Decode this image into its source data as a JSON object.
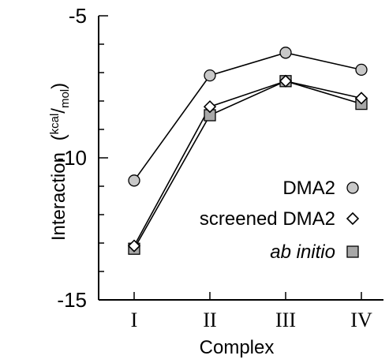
{
  "chart_data": {
    "type": "line",
    "categories": [
      "I",
      "II",
      "III",
      "IV"
    ],
    "series": [
      {
        "name": "DMA2",
        "marker": "circle",
        "values": [
          -10.8,
          -7.1,
          -6.3,
          -6.9
        ]
      },
      {
        "name": "screened DMA2",
        "marker": "diamond",
        "values": [
          -13.1,
          -8.2,
          -7.3,
          -7.9
        ]
      },
      {
        "name": "ab initio",
        "marker": "square",
        "values": [
          -13.2,
          -8.5,
          -7.3,
          -8.1
        ]
      }
    ],
    "xlabel": "Complex",
    "ylabel": "Interaction",
    "ylabel_unit_num": "kcal",
    "ylabel_unit_den": "mol",
    "ylim": [
      -15,
      -5
    ],
    "yticks": [
      -5,
      -10,
      -15
    ],
    "ytick_labels": [
      "-5",
      "-10",
      "-15"
    ],
    "grid": false,
    "legend_position": "right-center",
    "colors": {
      "line": "#000000",
      "circle_fill": "#c8c8c8",
      "square_fill": "#a8a8a8",
      "diamond_fill": "#ffffff"
    }
  }
}
